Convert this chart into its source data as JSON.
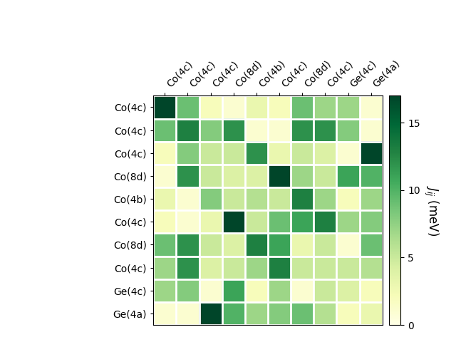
{
  "labels": [
    "Co(4c)",
    "Co(4c)",
    "Co(4c)",
    "Co(8d)",
    "Co(4b)",
    "Co(4c)",
    "Co(8d)",
    "Co(4c)",
    "Ge(4c)",
    "Ge(4a)"
  ],
  "matrix": [
    [
      17,
      9,
      2,
      1,
      3,
      2,
      9,
      7,
      7,
      1
    ],
    [
      9,
      13,
      8,
      12,
      1,
      1,
      12,
      12,
      8,
      1
    ],
    [
      2,
      8,
      5,
      5,
      12,
      3,
      5,
      4,
      1,
      17
    ],
    [
      1,
      12,
      5,
      4,
      4,
      17,
      7,
      5,
      11,
      10
    ],
    [
      3,
      1,
      8,
      5,
      6,
      5,
      13,
      7,
      2,
      7
    ],
    [
      2,
      1,
      3,
      17,
      5,
      9,
      11,
      13,
      7,
      8
    ],
    [
      9,
      12,
      5,
      4,
      13,
      11,
      3,
      5,
      1,
      9
    ],
    [
      7,
      12,
      4,
      5,
      7,
      13,
      5,
      5,
      5,
      6
    ],
    [
      7,
      8,
      1,
      11,
      2,
      7,
      1,
      5,
      4,
      2
    ],
    [
      1,
      1,
      17,
      10,
      7,
      8,
      9,
      6,
      2,
      3
    ]
  ],
  "vmin": 0,
  "vmax": 17,
  "cmap": "YlGn",
  "colorbar_label": "$J_{ij}$ (meV)",
  "colorbar_ticks": [
    0,
    5,
    10,
    15
  ],
  "figsize": [
    6.4,
    4.8
  ],
  "dpi": 100
}
